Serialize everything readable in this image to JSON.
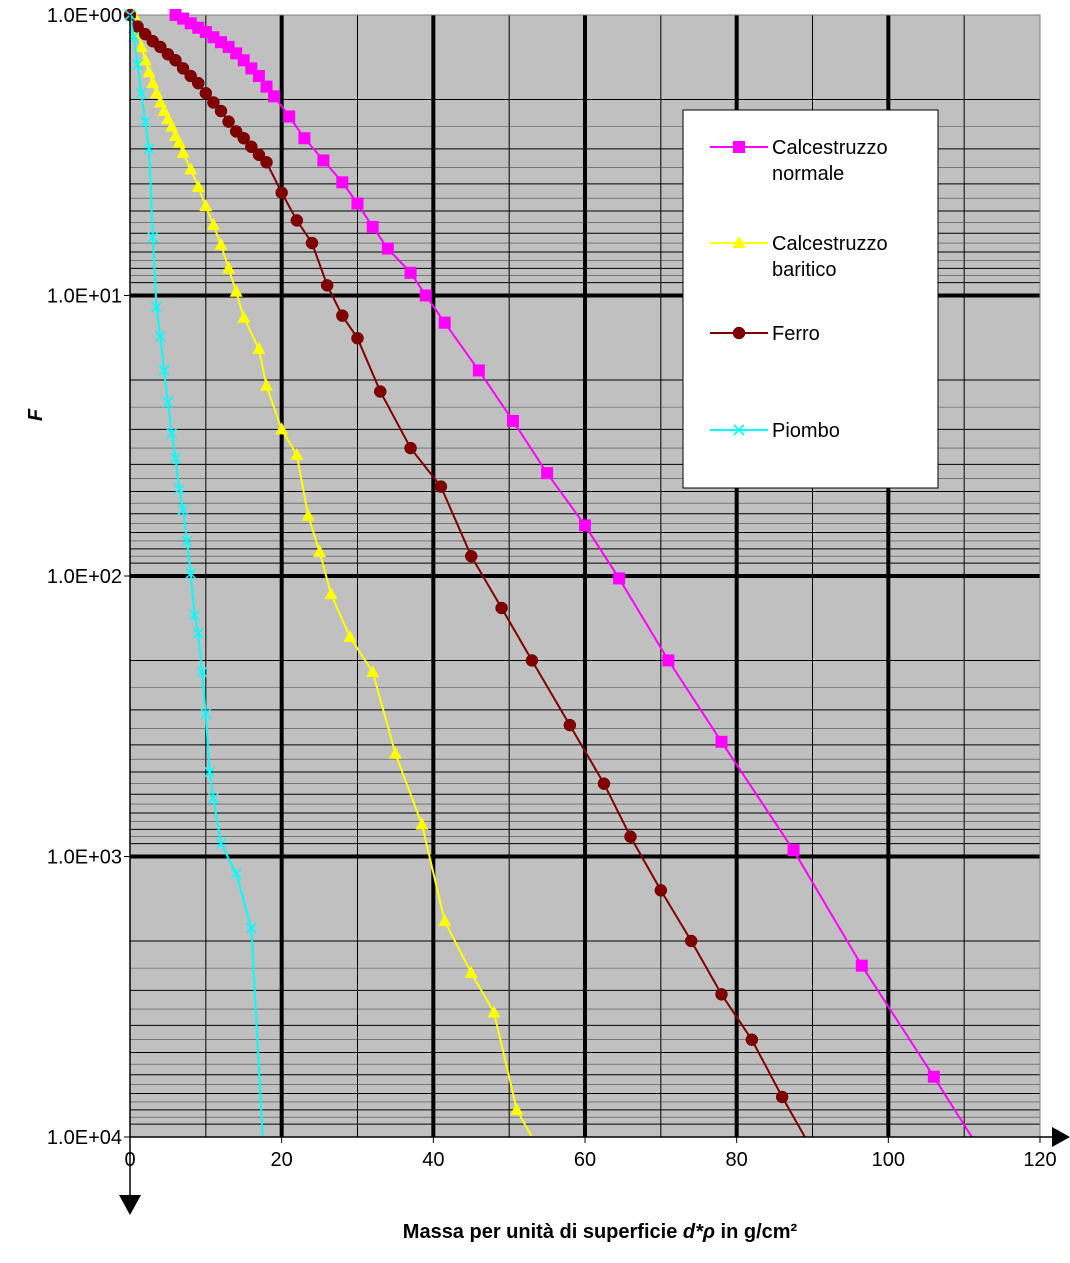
{
  "chart_data": {
    "type": "line",
    "title": "",
    "xlabel_prefix": "Massa per unità di superficie ",
    "xlabel_var": "d*ρ",
    "xlabel_suffix": " in g/cm²",
    "ylabel": "F",
    "xlim": [
      0,
      120
    ],
    "ylim": [
      1,
      10000
    ],
    "y_scale": "log",
    "x_ticks": [
      "0",
      "20",
      "40",
      "60",
      "80",
      "100",
      "120"
    ],
    "y_ticks": [
      "1.0E+00",
      "1.0E+01",
      "1.0E+02",
      "1.0E+03",
      "1.0E+04"
    ],
    "grid": true,
    "legend_position": "top-right",
    "plot_background": "#c0c0c0",
    "series": [
      {
        "name": "Calcestruzzo normale",
        "color": "#ff00ff",
        "marker": "square",
        "x": [
          6,
          7,
          8,
          9,
          10,
          11,
          12,
          13,
          14,
          15,
          16,
          17,
          18,
          19,
          21,
          23,
          25.5,
          28,
          30,
          32,
          34,
          37,
          39,
          41.5,
          46,
          50.5,
          55,
          60,
          64.5,
          71,
          78,
          87.5,
          96.5,
          106,
          111
        ],
        "y": [
          1.0,
          1.03,
          1.07,
          1.11,
          1.15,
          1.2,
          1.25,
          1.3,
          1.37,
          1.45,
          1.55,
          1.65,
          1.8,
          1.95,
          2.3,
          2.75,
          3.3,
          3.95,
          4.7,
          5.7,
          6.8,
          8.3,
          10.0,
          12.5,
          18.5,
          28,
          43,
          66,
          102,
          200,
          390,
          950,
          2450,
          6100,
          10000
        ]
      },
      {
        "name": "Calcestruzzo baritico",
        "color": "#ffff00",
        "marker": "triangle",
        "x": [
          0.5,
          1,
          1.5,
          2,
          2.5,
          3,
          3.5,
          4,
          4.5,
          5,
          5.5,
          6,
          6.5,
          7,
          8,
          9,
          10,
          11,
          12,
          13,
          14,
          15,
          17,
          18,
          20,
          22,
          23.5,
          25,
          26.5,
          29,
          32,
          35,
          38.5,
          41.5,
          45,
          48,
          51,
          53
        ],
        "y": [
          1.0,
          1.15,
          1.3,
          1.45,
          1.6,
          1.75,
          1.9,
          2.05,
          2.2,
          2.35,
          2.5,
          2.7,
          2.85,
          3.1,
          3.55,
          4.1,
          4.8,
          5.6,
          6.6,
          8.0,
          9.7,
          12,
          15.5,
          21,
          30,
          37,
          61,
          82,
          116,
          165,
          220,
          430,
          770,
          1700,
          2600,
          3600,
          8000,
          10000
        ]
      },
      {
        "name": "Ferro",
        "color": "#800000",
        "marker": "circle",
        "x": [
          0,
          1,
          2,
          3,
          4,
          5,
          6,
          7,
          8,
          9,
          10,
          11,
          12,
          13,
          14,
          15,
          16,
          17,
          18,
          20,
          22,
          24,
          26,
          28,
          30,
          33,
          37,
          41,
          45,
          49,
          53,
          58,
          62.5,
          66,
          70,
          74,
          78,
          82,
          86,
          89
        ],
        "y": [
          1.0,
          1.1,
          1.17,
          1.24,
          1.3,
          1.38,
          1.45,
          1.55,
          1.65,
          1.75,
          1.9,
          2.05,
          2.2,
          2.4,
          2.6,
          2.75,
          2.95,
          3.15,
          3.35,
          4.3,
          5.4,
          6.5,
          9.2,
          11.8,
          14.2,
          22,
          35,
          48,
          85,
          130,
          200,
          340,
          550,
          850,
          1320,
          2000,
          3100,
          4500,
          7200,
          10000
        ]
      },
      {
        "name": "Piombo",
        "color": "#00ffff",
        "marker": "x",
        "x": [
          0,
          0.5,
          1,
          1.5,
          2,
          2.5,
          3,
          3.5,
          4,
          4.5,
          5,
          5.5,
          6,
          6.5,
          7,
          7.5,
          8,
          8.5,
          9,
          9.5,
          10,
          10.5,
          11,
          12,
          14,
          16,
          17.5
        ],
        "y": [
          1.0,
          1.2,
          1.5,
          1.9,
          2.4,
          3.0,
          6.2,
          11,
          14,
          18.5,
          24,
          31,
          38,
          49,
          58,
          75,
          98,
          138,
          160,
          220,
          310,
          500,
          620,
          900,
          1150,
          1800,
          10000
        ]
      }
    ]
  }
}
